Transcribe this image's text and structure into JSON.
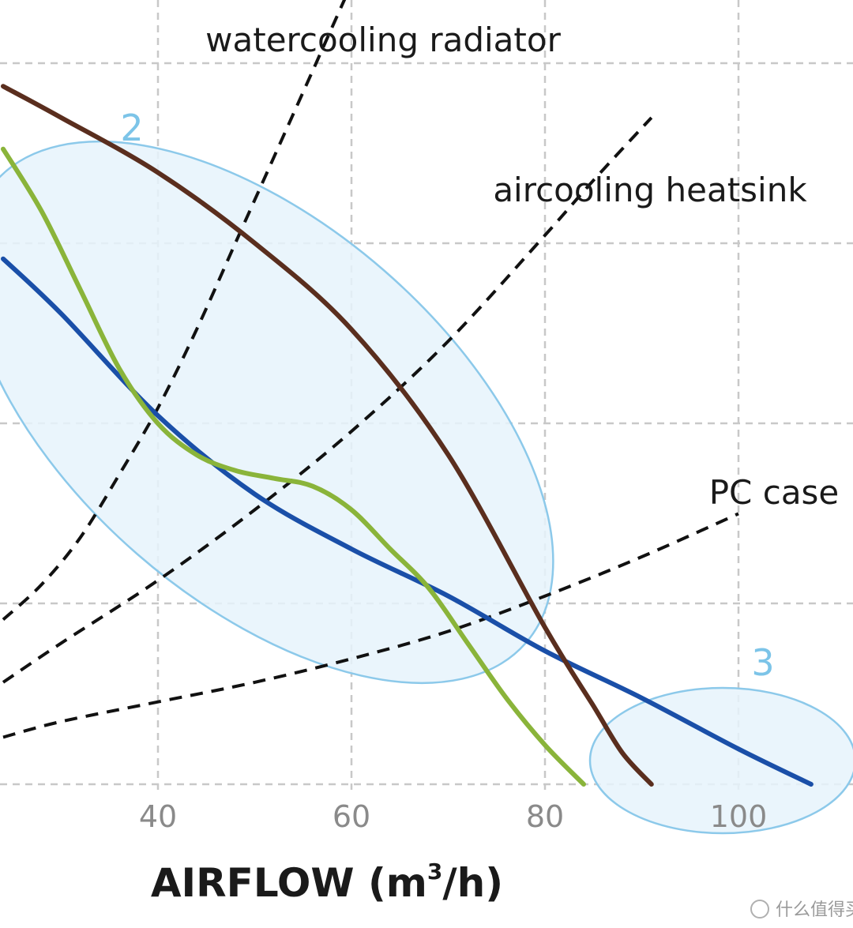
{
  "chart_data": {
    "type": "line",
    "xlabel": "AIRFLOW (m",
    "xlabel_sup": "3",
    "xlabel_suffix": "/h)",
    "x_ticks": [
      "40",
      "60",
      "80",
      "100"
    ],
    "x_tick_values": [
      40,
      60,
      80,
      100
    ],
    "xlim": [
      24,
      112
    ],
    "ylim": [
      0,
      100
    ],
    "grid": true,
    "series": [
      {
        "color": "#1a4fa8",
        "style": "solid",
        "x": [
          24,
          30,
          40,
          50,
          60,
          70,
          80,
          90,
          100,
          107.5
        ],
        "y": [
          67,
          60,
          47,
          37,
          30,
          24,
          17,
          11,
          4.5,
          0
        ]
      },
      {
        "color": "#5a2e1e",
        "style": "solid",
        "x": [
          24,
          30,
          40,
          50,
          60,
          70,
          80,
          85,
          88,
          91
        ],
        "y": [
          89,
          85,
          78,
          69,
          58,
          42,
          20,
          10,
          4,
          0
        ]
      },
      {
        "color": "#8ab43a",
        "style": "solid",
        "x": [
          24,
          28,
          32,
          36,
          40,
          44,
          48,
          52,
          56,
          60,
          64,
          68,
          72,
          76,
          80,
          84
        ],
        "y": [
          81,
          73,
          63,
          53,
          46,
          42,
          40,
          39,
          38,
          35,
          30,
          25,
          18,
          11,
          5,
          0
        ]
      }
    ],
    "system_curves": [
      {
        "label": "watercooling radiator",
        "color": "#111111",
        "style": "dashed",
        "x": [
          24,
          28,
          32,
          36,
          40,
          44,
          48,
          52,
          56,
          60,
          62
        ],
        "y": [
          21,
          25.5,
          31.5,
          39.5,
          48,
          58,
          69,
          80,
          91,
          102,
          107
        ]
      },
      {
        "label": "aircooling heatsink",
        "color": "#111111",
        "style": "dashed",
        "x": [
          24,
          30,
          40,
          50,
          60,
          70,
          80,
          85,
          91
        ],
        "y": [
          13,
          18,
          26,
          35,
          45,
          56.5,
          70,
          77,
          85
        ]
      },
      {
        "label": "PC case",
        "color": "#111111",
        "style": "dashed",
        "x": [
          24,
          30,
          40,
          50,
          60,
          70,
          80,
          90,
          100
        ],
        "y": [
          6,
          8,
          10.5,
          13,
          16,
          19.5,
          24,
          29,
          34.5
        ]
      }
    ],
    "zones": [
      {
        "label": "2"
      },
      {
        "label": "3"
      }
    ]
  },
  "watermark": "什么值得买"
}
